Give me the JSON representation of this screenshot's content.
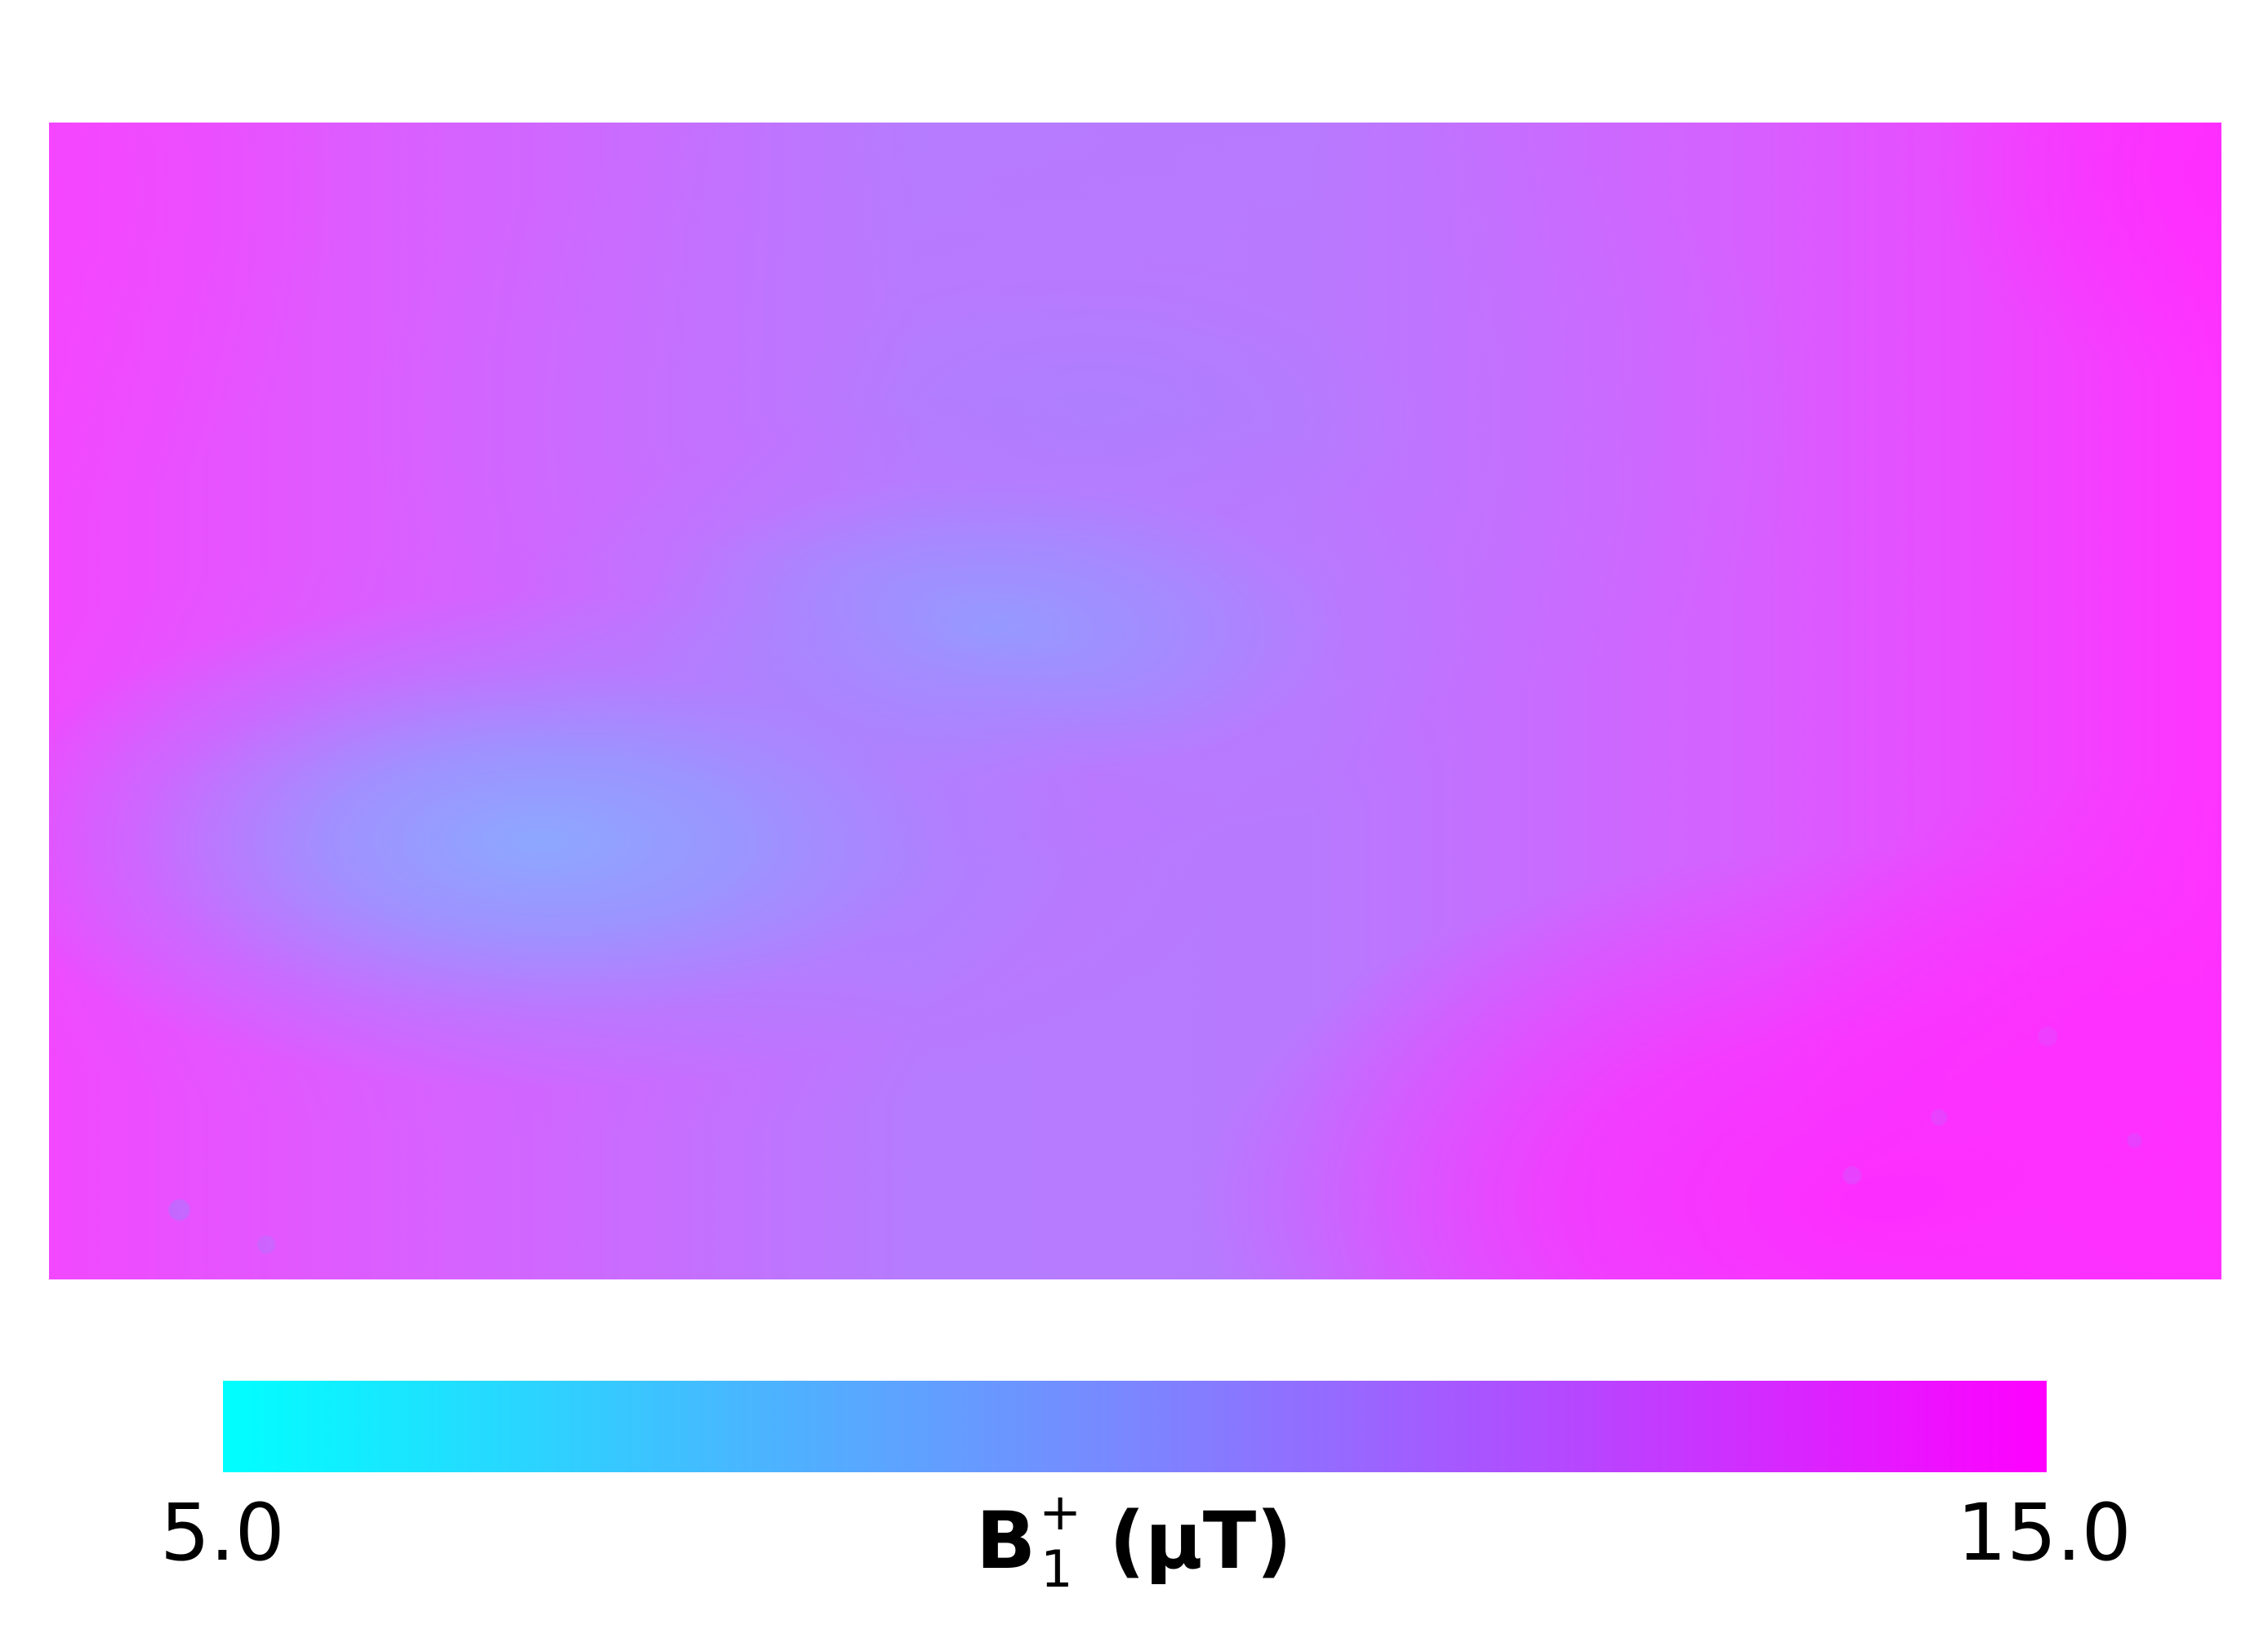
{
  "chart_data": {
    "type": "heatmap",
    "title": "",
    "xlabel": "",
    "ylabel": "",
    "colorbar": {
      "min": 5.0,
      "max": 15.0,
      "tick_labels": [
        "5.0",
        "15.0"
      ],
      "label_main": "B",
      "label_sub": "1",
      "label_sup": "+",
      "label_unit": "(μT)",
      "colormap": "cool"
    },
    "grid": false,
    "legend": "none"
  }
}
